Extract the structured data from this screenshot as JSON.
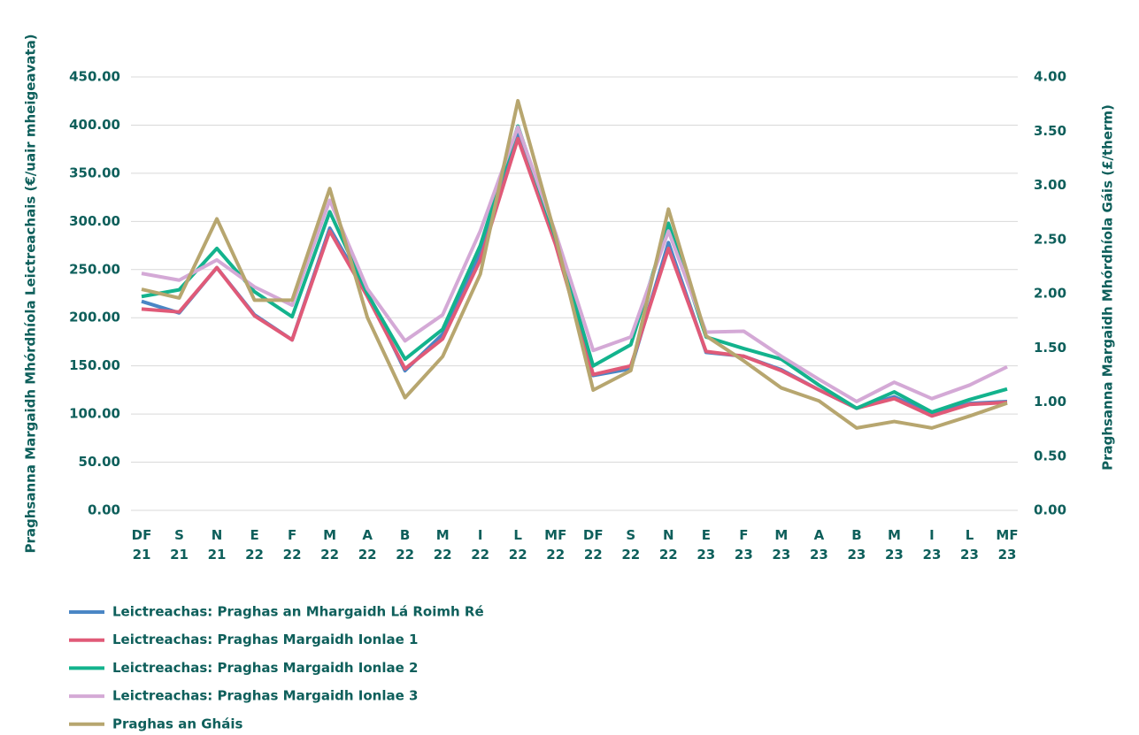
{
  "chart_data": {
    "type": "line",
    "categories": [
      [
        "DF",
        "21"
      ],
      [
        "S",
        "21"
      ],
      [
        "N",
        "21"
      ],
      [
        "E",
        "22"
      ],
      [
        "F",
        "22"
      ],
      [
        "M",
        "22"
      ],
      [
        "A",
        "22"
      ],
      [
        "B",
        "22"
      ],
      [
        "M",
        "22"
      ],
      [
        "I",
        "22"
      ],
      [
        "L",
        "22"
      ],
      [
        "MF",
        "22"
      ],
      [
        "DF",
        "22"
      ],
      [
        "S",
        "22"
      ],
      [
        "N",
        "22"
      ],
      [
        "E",
        "23"
      ],
      [
        "F",
        "23"
      ],
      [
        "M",
        "23"
      ],
      [
        "A",
        "23"
      ],
      [
        "B",
        "23"
      ],
      [
        "M",
        "23"
      ],
      [
        "I",
        "23"
      ],
      [
        "L",
        "23"
      ],
      [
        "MF",
        "23"
      ]
    ],
    "ylabel": "Praghsanna Margaidh Mhórdhíola Leictreachais (€/uair mheigeavata)",
    "y2label": "Praghsanna Margaidh Mhórdhíola Gáis (£/therm)",
    "ylim": [
      0,
      450
    ],
    "yticks": [
      {
        "value": 0,
        "label": "0.00"
      },
      {
        "value": 50,
        "label": "50.00"
      },
      {
        "value": 100,
        "label": "100.00"
      },
      {
        "value": 150,
        "label": "150.00"
      },
      {
        "value": 200,
        "label": "200.00"
      },
      {
        "value": 250,
        "label": "250.00"
      },
      {
        "value": 300,
        "label": "300.00"
      },
      {
        "value": 350,
        "label": "350.00"
      },
      {
        "value": 400,
        "label": "400.00"
      },
      {
        "value": 450,
        "label": "450.00"
      }
    ],
    "y2lim": [
      0,
      4
    ],
    "y2ticks": [
      {
        "value": 0,
        "label": "0.00"
      },
      {
        "value": 0.5,
        "label": "0.50"
      },
      {
        "value": 1,
        "label": "1.00"
      },
      {
        "value": 1.5,
        "label": "1.50"
      },
      {
        "value": 2,
        "label": "2.00"
      },
      {
        "value": 2.5,
        "label": "2.50"
      },
      {
        "value": 3,
        "label": "3.00"
      },
      {
        "value": 3.5,
        "label": "3.50"
      },
      {
        "value": 4,
        "label": "4.00"
      }
    ],
    "grid": true,
    "legend": "bottom",
    "series": [
      {
        "name": "Leictreachas: Praghas an Mhargaidh Lá Roimh Ré",
        "color": "#4a86c5",
        "values": [
          217,
          205,
          252,
          203,
          177,
          293,
          225,
          145,
          183,
          268,
          390,
          280,
          140,
          147,
          278,
          164,
          160,
          146,
          125,
          106,
          118,
          100,
          111,
          113
        ]
      },
      {
        "name": "Leictreachas: Praghas Margaidh Ionlae 1",
        "color": "#e05a78",
        "values": [
          209,
          206,
          252,
          202,
          177,
          290,
          222,
          147,
          178,
          260,
          386,
          276,
          141,
          150,
          272,
          165,
          160,
          145,
          125,
          106,
          116,
          98,
          110,
          112
        ]
      },
      {
        "name": "Leictreachas: Praghas Margaidh Ionlae 2",
        "color": "#13b38d",
        "values": [
          222,
          229,
          272,
          227,
          201,
          310,
          225,
          157,
          188,
          275,
          399,
          283,
          150,
          172,
          298,
          180,
          168,
          157,
          130,
          106,
          123,
          102,
          115,
          126
        ]
      },
      {
        "name": "Leictreachas: Praghas Margaidh Ionlae 3",
        "color": "#d4a9d6",
        "values": [
          246,
          239,
          260,
          232,
          213,
          322,
          230,
          176,
          203,
          290,
          398,
          288,
          166,
          180,
          290,
          185,
          186,
          160,
          136,
          113,
          133,
          116,
          130,
          149
        ]
      },
      {
        "name": "Praghas an Gháis",
        "color": "#b7a66f",
        "axis": "y2",
        "values": [
          2.04,
          1.96,
          2.69,
          1.94,
          1.94,
          2.97,
          1.78,
          1.04,
          1.42,
          2.18,
          3.78,
          2.53,
          1.11,
          1.29,
          2.78,
          1.61,
          1.38,
          1.13,
          1.01,
          0.76,
          0.82,
          0.76,
          0.87,
          0.99
        ]
      }
    ]
  }
}
